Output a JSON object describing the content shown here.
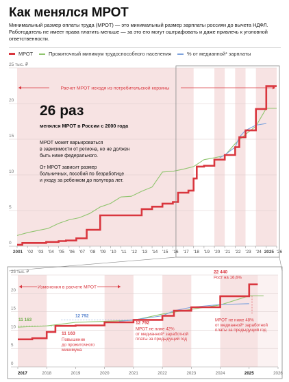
{
  "title": "Как менялся МРОТ",
  "intro": "Минимальный размер оплаты труда (МРОТ) — это минимальный размер зарплаты россиян до вычета НДФЛ. Работодатель не имеет права платить меньше — за это его могут оштрафовать и даже привлечь к уголовной ответственности.",
  "colors": {
    "mrot": "#d9363e",
    "subsistence": "#8fc46e",
    "median": "#7ea3dd",
    "band": "#f7e3e3"
  },
  "legend": [
    {
      "label": "МРОТ",
      "color": "#d9363e"
    },
    {
      "label": "Прожиточный минимум трудоспособного населения",
      "color": "#8fc46e"
    },
    {
      "label": "% от медианной* зарплаты",
      "color": "#7ea3dd"
    }
  ],
  "main_chart": {
    "y_unit_label": "25 тыс. ₽",
    "y_ticks": [
      "20",
      "15",
      "10",
      "5",
      "0"
    ],
    "x_ticks": [
      "2001",
      "'02",
      "'03",
      "'04",
      "'05",
      "'06",
      "'07",
      "'08",
      "'09",
      "'10",
      "'11",
      "'12",
      "'13",
      "'14",
      "'15",
      "'16",
      "'17",
      "'18",
      "'19",
      "'20",
      "'21",
      "'22",
      "'23",
      "'24",
      "2025",
      "'26"
    ],
    "band_label": "Расчет МРОТ исходя из потребительской корзины",
    "big_number": "26 раз",
    "big_caption": "менялся МРОТ в России с 2000 года",
    "note1": "МРОТ может варьироваться в зависимости от региона, но не должен быть ниже федерального.",
    "note2": "От МРОТ зависит размер больничных, пособий по безработице и уходу за ребенком до полутора лет."
  },
  "detail_chart": {
    "y_unit_label": "25 тыс. ₽",
    "y_ticks": [
      "20",
      "15",
      "10",
      "5",
      "0"
    ],
    "x_ticks": [
      "2017",
      "2018",
      "2019",
      "2020",
      "2021",
      "2022",
      "2023",
      "2024",
      "2025",
      "2026"
    ],
    "band_label": "Изменения в расчете МРОТ",
    "annotations": {
      "subsistence_start": "11 163",
      "median_start": "12 792",
      "a2018_value": "11 163",
      "a2018_text": "Повышение до прожиточного минимума",
      "a2021_value": "12 792",
      "a2021_text": "МРОТ не ниже 42% от медианной* заработной платы за предыдущий год",
      "a2025_value": "22 440",
      "a2025_sub": "Рост на 16,6%",
      "a2025_text": "МРОТ не ниже 48% от медианной* заработной платы за предыдущий год"
    }
  },
  "chart_data": [
    {
      "type": "line",
      "title": "Как менялся МРОТ",
      "ylabel": "тыс. ₽",
      "ylim": [
        0,
        25
      ],
      "xlim": [
        2001,
        2026
      ],
      "grid": true,
      "series": [
        {
          "name": "МРОТ",
          "x": [
            2001,
            2001.5,
            2001.5,
            2003.8,
            2003.8,
            2005,
            2005,
            2005.7,
            2005.7,
            2006.7,
            2006.7,
            2007.7,
            2007.7,
            2009,
            2009,
            2013,
            2013,
            2014,
            2014,
            2015,
            2015,
            2016,
            2016,
            2016.5,
            2016.5,
            2017.5,
            2017.5,
            2018,
            2018,
            2018.3,
            2018.3,
            2019,
            2019,
            2020,
            2020,
            2021,
            2021,
            2022,
            2022,
            2022.4,
            2022.4,
            2023,
            2023,
            2024,
            2024,
            2025,
            2025,
            2026
          ],
          "y": [
            0.2,
            0.2,
            0.45,
            0.45,
            0.6,
            0.6,
            0.72,
            0.72,
            0.8,
            0.8,
            1.1,
            1.1,
            2.3,
            2.3,
            4.33,
            4.33,
            5.2,
            5.2,
            5.55,
            5.55,
            5.97,
            5.97,
            6.2,
            6.2,
            7.5,
            7.5,
            7.8,
            7.8,
            9.5,
            9.5,
            11.16,
            11.16,
            11.28,
            11.28,
            12.13,
            12.13,
            12.79,
            12.79,
            13.89,
            13.89,
            15.28,
            15.28,
            16.24,
            16.24,
            19.24,
            19.24,
            22.44,
            22.44
          ]
        },
        {
          "name": "Прожиточный минимум трудоспособного населения",
          "x": [
            2001,
            2002,
            2003,
            2004,
            2005,
            2006,
            2007,
            2008,
            2009,
            2010,
            2011,
            2012,
            2013,
            2014,
            2015,
            2016,
            2017,
            2018,
            2019,
            2020,
            2021,
            2022,
            2023,
            2024,
            2025,
            2026
          ],
          "y": [
            1.5,
            1.9,
            2.2,
            2.5,
            3.2,
            3.7,
            4.0,
            4.6,
            5.5,
            6.0,
            6.9,
            7.0,
            7.7,
            8.3,
            10.4,
            10.5,
            10.8,
            11.16,
            12.13,
            12.39,
            12.7,
            14.38,
            15.67,
            16.84,
            19.33,
            19.33
          ]
        },
        {
          "name": "% от медианной* зарплаты",
          "x": [
            2020.5,
            2021,
            2022,
            2022.4,
            2023,
            2024,
            2025
          ],
          "y": [
            12.39,
            12.79,
            13.89,
            15.28,
            16.24,
            16.97,
            17.2
          ]
        }
      ]
    },
    {
      "type": "line",
      "ylabel": "тыс. ₽",
      "ylim": [
        0,
        25
      ],
      "xlim": [
        2017,
        2026
      ],
      "series": [
        {
          "name": "МРОТ",
          "x": [
            2017,
            2017.5,
            2017.5,
            2018,
            2018,
            2018.3,
            2018.3,
            2019,
            2019,
            2020,
            2020,
            2021,
            2021,
            2022,
            2022,
            2022.4,
            2022.4,
            2023,
            2023,
            2024,
            2024,
            2025,
            2025,
            2025.3
          ],
          "y": [
            7.5,
            7.5,
            7.8,
            7.8,
            9.5,
            9.5,
            11.16,
            11.16,
            11.28,
            11.28,
            12.13,
            12.13,
            12.79,
            12.79,
            13.89,
            13.89,
            15.28,
            15.28,
            16.24,
            16.24,
            19.24,
            19.24,
            22.44,
            22.44
          ]
        },
        {
          "name": "Прожиточный минимум трудоспособного населения",
          "x": [
            2017,
            2018,
            2019,
            2020,
            2021,
            2022,
            2023,
            2024,
            2025,
            2025.5
          ],
          "y": [
            10.8,
            11.16,
            12.13,
            12.39,
            12.7,
            14.38,
            15.67,
            16.84,
            19.33,
            19.33
          ]
        },
        {
          "name": "% от медианной* зарплаты",
          "x": [
            2020.5,
            2021,
            2022,
            2022.4,
            2023,
            2024,
            2025
          ],
          "y": [
            12.39,
            12.79,
            13.89,
            15.28,
            16.24,
            16.97,
            17.2
          ]
        }
      ]
    }
  ]
}
